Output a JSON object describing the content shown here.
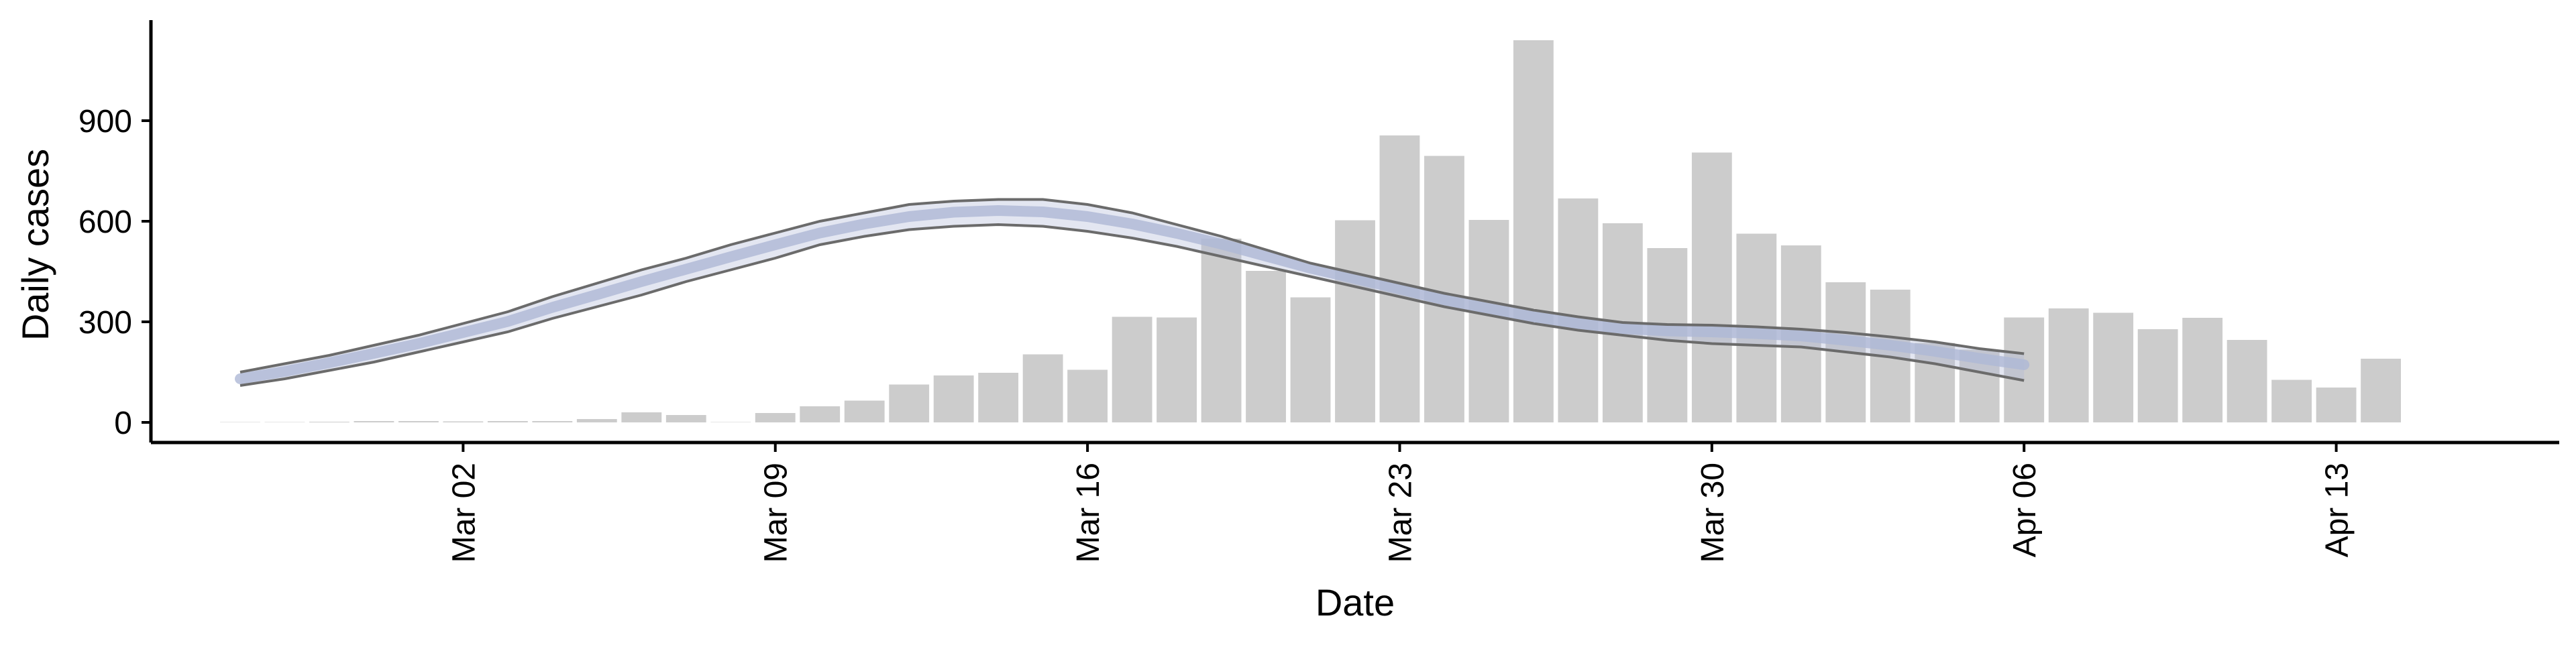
{
  "chart_data": {
    "type": "bar",
    "xlabel": "Date",
    "ylabel": "Daily cases",
    "x_range": [
      "2020-02-24",
      "2020-04-18"
    ],
    "ylim": [
      -60,
      1200
    ],
    "grid": false,
    "legend": "none",
    "x_ticks": [
      {
        "date": "2020-03-02",
        "label": "Mar 02"
      },
      {
        "date": "2020-03-09",
        "label": "Mar 09"
      },
      {
        "date": "2020-03-16",
        "label": "Mar 16"
      },
      {
        "date": "2020-03-23",
        "label": "Mar 23"
      },
      {
        "date": "2020-03-30",
        "label": "Mar 30"
      },
      {
        "date": "2020-04-06",
        "label": "Apr 06"
      },
      {
        "date": "2020-04-13",
        "label": "Apr 13"
      }
    ],
    "y_ticks": [
      {
        "value": 0,
        "label": "0"
      },
      {
        "value": 300,
        "label": "300"
      },
      {
        "value": 600,
        "label": "600"
      },
      {
        "value": 900,
        "label": "900"
      }
    ],
    "bars": {
      "color": "#cccccc",
      "dates": [
        "2020-02-26",
        "2020-02-27",
        "2020-02-28",
        "2020-02-29",
        "2020-03-01",
        "2020-03-02",
        "2020-03-03",
        "2020-03-04",
        "2020-03-05",
        "2020-03-06",
        "2020-03-07",
        "2020-03-08",
        "2020-03-09",
        "2020-03-10",
        "2020-03-11",
        "2020-03-12",
        "2020-03-13",
        "2020-03-14",
        "2020-03-15",
        "2020-03-16",
        "2020-03-17",
        "2020-03-18",
        "2020-03-19",
        "2020-03-20",
        "2020-03-21",
        "2020-03-22",
        "2020-03-23",
        "2020-03-24",
        "2020-03-25",
        "2020-03-26",
        "2020-03-27",
        "2020-03-28",
        "2020-03-29",
        "2020-03-30",
        "2020-03-31",
        "2020-04-01",
        "2020-04-02",
        "2020-04-03",
        "2020-04-04",
        "2020-04-05",
        "2020-04-06",
        "2020-04-07",
        "2020-04-08",
        "2020-04-09",
        "2020-04-10",
        "2020-04-11",
        "2020-04-12",
        "2020-04-13",
        "2020-04-14",
        "2020-04-15"
      ],
      "values": [
        1,
        1,
        2,
        4,
        4,
        3,
        4,
        4,
        10,
        30,
        22,
        1,
        28,
        48,
        65,
        113,
        140,
        148,
        203,
        157,
        315,
        313,
        548,
        452,
        373,
        603,
        856,
        795,
        604,
        1140,
        668,
        594,
        520,
        805,
        563,
        528,
        418,
        396,
        237,
        217,
        313,
        340,
        327,
        278,
        312,
        246,
        127,
        104,
        190,
        0
      ]
    },
    "model_fit": {
      "color": "#aeb8d6",
      "dates": [
        "2020-02-26",
        "2020-02-27",
        "2020-02-28",
        "2020-02-29",
        "2020-03-01",
        "2020-03-02",
        "2020-03-03",
        "2020-03-04",
        "2020-03-05",
        "2020-03-06",
        "2020-03-07",
        "2020-03-08",
        "2020-03-09",
        "2020-03-10",
        "2020-03-11",
        "2020-03-12",
        "2020-03-13",
        "2020-03-14",
        "2020-03-15",
        "2020-03-16",
        "2020-03-17",
        "2020-03-18",
        "2020-03-19",
        "2020-03-20",
        "2020-03-21",
        "2020-03-22",
        "2020-03-23",
        "2020-03-24",
        "2020-03-25",
        "2020-03-26",
        "2020-03-27",
        "2020-03-28",
        "2020-03-29",
        "2020-03-30",
        "2020-03-31",
        "2020-04-01",
        "2020-04-02",
        "2020-04-03",
        "2020-04-04",
        "2020-04-05",
        "2020-04-06"
      ],
      "upper": [
        150,
        175,
        200,
        230,
        260,
        295,
        330,
        375,
        415,
        455,
        490,
        530,
        565,
        600,
        625,
        650,
        660,
        665,
        665,
        650,
        625,
        590,
        555,
        515,
        475,
        445,
        415,
        385,
        360,
        335,
        315,
        298,
        292,
        290,
        285,
        278,
        268,
        255,
        240,
        220,
        205
      ],
      "center": [
        130,
        152,
        178,
        206,
        235,
        268,
        301,
        343,
        381,
        420,
        457,
        494,
        530,
        565,
        592,
        614,
        627,
        632,
        628,
        614,
        592,
        564,
        532,
        496,
        460,
        429,
        398,
        366,
        339,
        315,
        295,
        280,
        273,
        270,
        265,
        258,
        245,
        230,
        212,
        191,
        172
      ],
      "lower": [
        110,
        130,
        155,
        180,
        210,
        240,
        270,
        310,
        345,
        380,
        420,
        455,
        490,
        530,
        555,
        575,
        585,
        590,
        585,
        570,
        550,
        525,
        495,
        465,
        435,
        405,
        375,
        345,
        320,
        295,
        275,
        260,
        245,
        235,
        230,
        225,
        210,
        195,
        175,
        150,
        125
      ]
    }
  }
}
